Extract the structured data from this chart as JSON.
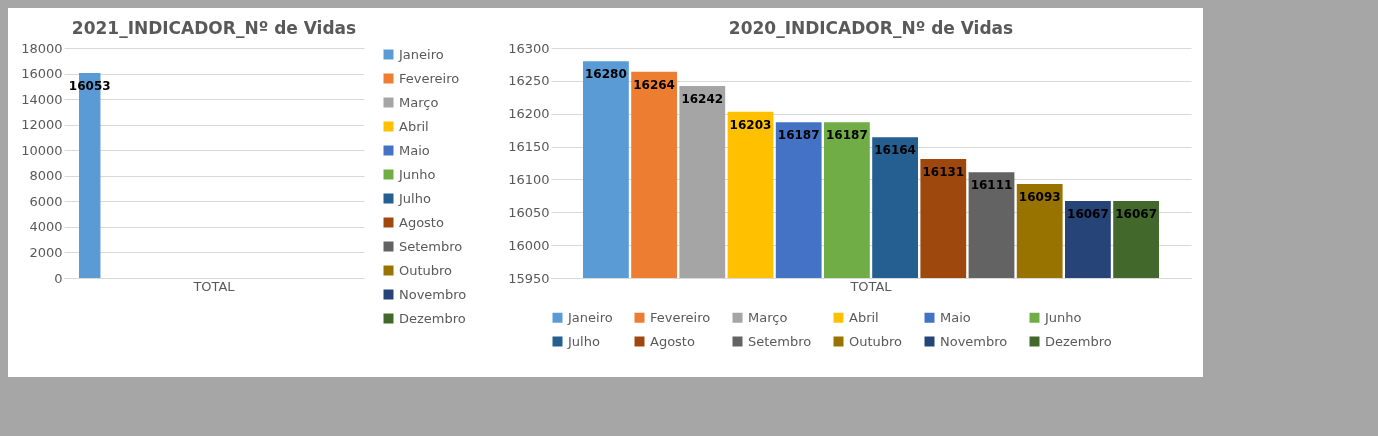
{
  "chart_data": [
    {
      "type": "bar",
      "title": "2021_INDICADOR_Nº de Vidas",
      "categories": [
        "TOTAL"
      ],
      "ylim": [
        0,
        18000
      ],
      "yticks": [
        0,
        2000,
        4000,
        6000,
        8000,
        10000,
        12000,
        14000,
        16000,
        18000
      ],
      "grid": "y",
      "legend": "right",
      "data_labels": true,
      "series": [
        {
          "name": "Janeiro",
          "color": "#5b9bd5",
          "values": [
            16053
          ]
        },
        {
          "name": "Fevereiro",
          "color": "#ed7d31",
          "values": [
            null
          ]
        },
        {
          "name": "Março",
          "color": "#a5a5a5",
          "values": [
            null
          ]
        },
        {
          "name": "Abril",
          "color": "#ffc000",
          "values": [
            null
          ]
        },
        {
          "name": "Maio",
          "color": "#4472c4",
          "values": [
            null
          ]
        },
        {
          "name": "Junho",
          "color": "#70ad47",
          "values": [
            null
          ]
        },
        {
          "name": "Julho",
          "color": "#255e91",
          "values": [
            null
          ]
        },
        {
          "name": "Agosto",
          "color": "#9e480e",
          "values": [
            null
          ]
        },
        {
          "name": "Setembro",
          "color": "#636363",
          "values": [
            null
          ]
        },
        {
          "name": "Outubro",
          "color": "#997300",
          "values": [
            null
          ]
        },
        {
          "name": "Novembro",
          "color": "#264478",
          "values": [
            null
          ]
        },
        {
          "name": "Dezembro",
          "color": "#43682b",
          "values": [
            null
          ]
        }
      ]
    },
    {
      "type": "bar",
      "title": "2020_INDICADOR_Nº de Vidas",
      "categories": [
        "TOTAL"
      ],
      "ylim": [
        15950,
        16300
      ],
      "yticks": [
        15950,
        16000,
        16050,
        16100,
        16150,
        16200,
        16250,
        16300
      ],
      "grid": "y",
      "legend": "bottom",
      "data_labels": true,
      "series": [
        {
          "name": "Janeiro",
          "color": "#5b9bd5",
          "values": [
            16280
          ]
        },
        {
          "name": "Fevereiro",
          "color": "#ed7d31",
          "values": [
            16264
          ]
        },
        {
          "name": "Março",
          "color": "#a5a5a5",
          "values": [
            16242
          ]
        },
        {
          "name": "Abril",
          "color": "#ffc000",
          "values": [
            16203
          ]
        },
        {
          "name": "Maio",
          "color": "#4472c4",
          "values": [
            16187
          ]
        },
        {
          "name": "Junho",
          "color": "#70ad47",
          "values": [
            16187
          ]
        },
        {
          "name": "Julho",
          "color": "#255e91",
          "values": [
            16164
          ]
        },
        {
          "name": "Agosto",
          "color": "#9e480e",
          "values": [
            16131
          ]
        },
        {
          "name": "Setembro",
          "color": "#636363",
          "values": [
            16111
          ]
        },
        {
          "name": "Outubro",
          "color": "#997300",
          "values": [
            16093
          ]
        },
        {
          "name": "Novembro",
          "color": "#264478",
          "values": [
            16067
          ]
        },
        {
          "name": "Dezembro",
          "color": "#43682b",
          "values": [
            16067
          ]
        }
      ]
    }
  ]
}
